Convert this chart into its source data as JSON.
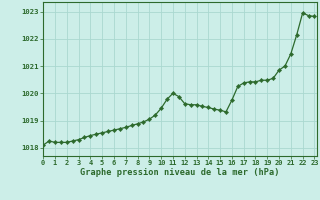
{
  "x": [
    0,
    0.5,
    1,
    1.5,
    2,
    2.5,
    3,
    3.5,
    4,
    4.5,
    5,
    5.5,
    6,
    6.5,
    7,
    7.5,
    8,
    8.5,
    9,
    9.5,
    10,
    10.5,
    11,
    11.5,
    12,
    12.5,
    13,
    13.5,
    14,
    14.5,
    15,
    15.5,
    16,
    16.5,
    17,
    17.5,
    18,
    18.5,
    19,
    19.5,
    20,
    20.5,
    21,
    21.5,
    22,
    22.5,
    23
  ],
  "y": [
    1018.1,
    1018.25,
    1018.2,
    1018.2,
    1018.2,
    1018.25,
    1018.3,
    1018.38,
    1018.45,
    1018.5,
    1018.55,
    1018.6,
    1018.65,
    1018.7,
    1018.75,
    1018.82,
    1018.88,
    1018.95,
    1019.05,
    1019.2,
    1019.45,
    1019.78,
    1020.0,
    1019.88,
    1019.62,
    1019.58,
    1019.58,
    1019.52,
    1019.48,
    1019.42,
    1019.38,
    1019.32,
    1019.75,
    1020.25,
    1020.38,
    1020.42,
    1020.42,
    1020.48,
    1020.48,
    1020.55,
    1020.85,
    1021.0,
    1021.45,
    1022.15,
    1022.95,
    1022.85,
    1022.82
  ],
  "line_color": "#2d6a2d",
  "marker_color": "#2d6a2d",
  "bg_color": "#cceee8",
  "grid_color": "#aad8d0",
  "xlabel": "Graphe pression niveau de la mer (hPa)",
  "ylabel_ticks": [
    1018,
    1019,
    1020,
    1021,
    1022,
    1023
  ],
  "xtick_labels": [
    "0",
    "1",
    "2",
    "3",
    "4",
    "5",
    "6",
    "7",
    "8",
    "9",
    "10",
    "11",
    "12",
    "13",
    "14",
    "15",
    "16",
    "17",
    "18",
    "19",
    "20",
    "21",
    "22",
    "23"
  ],
  "xticks": [
    0,
    1,
    2,
    3,
    4,
    5,
    6,
    7,
    8,
    9,
    10,
    11,
    12,
    13,
    14,
    15,
    16,
    17,
    18,
    19,
    20,
    21,
    22,
    23
  ],
  "xlim": [
    0,
    23.2
  ],
  "ylim": [
    1017.7,
    1023.35
  ],
  "tick_color": "#2d6a2d",
  "axis_color": "#2d6a2d",
  "spine_color": "#2d6a2d"
}
